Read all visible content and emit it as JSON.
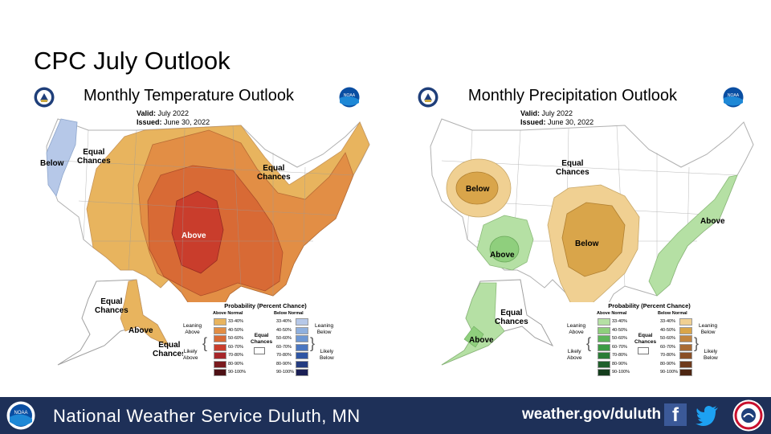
{
  "slide": {
    "title": "CPC July Outlook"
  },
  "temperature": {
    "title": "Monthly Temperature Outlook",
    "valid_label": "Valid:",
    "valid_value": "July 2022",
    "issued_label": "Issued:",
    "issued_value": "June 30, 2022",
    "labels": {
      "below_nw": "Below",
      "equal_west": "Equal\nChances",
      "equal_ne": "Equal\nChances",
      "above_center": "Above",
      "alaska_equal": "Equal\nChances",
      "alaska_above": "Above",
      "alaska_equal_south": "Equal\nChances"
    }
  },
  "precipitation": {
    "title": "Monthly Precipitation Outlook",
    "valid_label": "Valid:",
    "valid_value": "July 2022",
    "issued_label": "Issued:",
    "issued_value": "June 30, 2022",
    "labels": {
      "below_nw": "Below",
      "equal_north": "Equal\nChances",
      "above_sw": "Above",
      "below_center": "Below",
      "above_east": "Above",
      "alaska_equal": "Equal\nChances",
      "alaska_above": "Above"
    }
  },
  "legend": {
    "title": "Probability (Percent Chance)",
    "above_normal": "Above Normal",
    "below_normal": "Below Normal",
    "leaning_above": "Leaning\nAbove",
    "likely_above": "Likely\nAbove",
    "leaning_below": "Leaning\nBelow",
    "likely_below": "Likely\nBelow",
    "equal_chances": "Equal\nChances",
    "ranges": [
      "33-40%",
      "40-50%",
      "50-60%",
      "60-70%",
      "70-80%",
      "80-90%",
      "90-100%"
    ]
  },
  "colors": {
    "temp_above": [
      "#e8b45e",
      "#e28e45",
      "#d86a35",
      "#c93d2c",
      "#a6262a",
      "#7a1a1e",
      "#4d1014"
    ],
    "temp_below": [
      "#b6c8e8",
      "#8fb0de",
      "#6d97d3",
      "#4a76c0",
      "#2f55a3",
      "#243c80",
      "#1a1f55"
    ],
    "precip_above": [
      "#b5e0a4",
      "#8fcf7d",
      "#5db45a",
      "#3c9b44",
      "#2a7c36",
      "#1f5f2b",
      "#143d1c"
    ],
    "precip_below": [
      "#f0d092",
      "#d9a54a",
      "#c28540",
      "#a86a33",
      "#8a4f26",
      "#6e3a1c",
      "#4d2612"
    ],
    "footer_bg": "#1e3058",
    "facebook": "#3b5998",
    "twitter": "#1da1f2"
  },
  "footer": {
    "office": "National Weather Service Duluth, MN",
    "url": "weather.gov/duluth"
  },
  "icons": [
    "noaa-logo",
    "doc-logo",
    "facebook-icon",
    "twitter-icon",
    "weather-ready-nation-icon"
  ]
}
